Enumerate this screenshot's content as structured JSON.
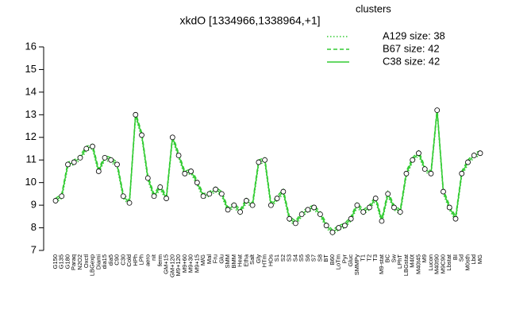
{
  "chart_data": {
    "type": "line",
    "title": "xkdO [1334966,1338964,+1]",
    "legend_title": "clusters",
    "legend": "top-right",
    "categories": [
      "G150",
      "G135",
      "G180",
      "Paraq",
      "N2O2",
      "Oxctl",
      "LBGexp",
      "Diami",
      "dia15",
      "dia5",
      "C90",
      "C30",
      "Cold",
      "HPh",
      "LPh",
      "aero",
      "nit",
      "ferm",
      "GM+15",
      "GM+120",
      "M9+120",
      "M9+60",
      "M9+30",
      "M9+15",
      "M/G",
      "Mal",
      "Fru",
      "Glu",
      "SMM",
      "BMM",
      "Heat",
      "Etha",
      "Salt",
      "Gly",
      "HTm",
      "HOs",
      "S1",
      "S2",
      "S3",
      "S4",
      "S5",
      "S6",
      "S7",
      "S8",
      "BT",
      "B60",
      "LoTm",
      "Pyr",
      "Gluc",
      "SMMPy",
      "T1",
      "T2",
      "T3",
      "M9-stat",
      "BC",
      "Sw",
      "LPhT",
      "LBGstat",
      "M40t",
      "M40t45",
      "M9",
      "Lucon",
      "M40t90",
      "M9C90",
      "Lbstat",
      "BI",
      "Sd",
      "M0sth",
      "Lbd",
      "MG"
    ],
    "series": [
      {
        "name": "A129 size: 38",
        "color": "#33cc33",
        "dash": "dotted",
        "values": [
          9.1,
          9.3,
          10.7,
          10.8,
          11.0,
          11.4,
          11.5,
          10.4,
          11.0,
          10.9,
          10.7,
          9.3,
          9.0,
          12.9,
          12.0,
          10.1,
          9.3,
          9.7,
          9.2,
          11.9,
          11.1,
          10.3,
          10.4,
          9.9,
          9.3,
          9.4,
          9.6,
          9.4,
          8.7,
          8.9,
          8.6,
          9.1,
          8.9,
          10.8,
          10.9,
          8.9,
          9.2,
          9.5,
          8.3,
          8.1,
          8.5,
          8.7,
          8.8,
          8.5,
          8.0,
          7.7,
          7.9,
          8.0,
          8.3,
          8.9,
          8.6,
          8.8,
          9.2,
          8.2,
          9.4,
          8.8,
          8.6,
          10.3,
          10.9,
          11.2,
          10.5,
          10.3,
          13.1,
          9.5,
          8.8,
          8.3,
          10.3,
          10.8,
          11.1,
          11.2
        ]
      },
      {
        "name": "B67 size: 42",
        "color": "#33cc33",
        "dash": "dashed",
        "values": [
          9.3,
          9.5,
          10.9,
          11.0,
          11.2,
          11.6,
          11.7,
          10.6,
          11.2,
          11.1,
          10.9,
          9.5,
          9.2,
          13.1,
          12.2,
          10.3,
          9.5,
          9.9,
          9.4,
          12.1,
          11.3,
          10.5,
          10.6,
          10.1,
          9.5,
          9.6,
          9.8,
          9.6,
          8.9,
          9.1,
          8.8,
          9.3,
          9.1,
          11.0,
          11.1,
          9.1,
          9.4,
          9.7,
          8.5,
          8.3,
          8.7,
          8.9,
          9.0,
          8.7,
          8.2,
          7.9,
          8.1,
          8.2,
          8.5,
          9.1,
          8.8,
          9.0,
          9.4,
          8.4,
          9.6,
          9.0,
          8.8,
          10.5,
          11.1,
          11.4,
          10.7,
          10.5,
          13.3,
          9.7,
          9.0,
          8.5,
          10.5,
          11.0,
          11.3,
          11.4
        ]
      },
      {
        "name": "C38 size: 42",
        "color": "#33cc33",
        "dash": "solid",
        "points": true,
        "values": [
          9.2,
          9.4,
          10.8,
          10.9,
          11.1,
          11.5,
          11.6,
          10.5,
          11.1,
          11.0,
          10.8,
          9.4,
          9.1,
          13.0,
          12.1,
          10.2,
          9.4,
          9.8,
          9.3,
          12.0,
          11.2,
          10.4,
          10.5,
          10.0,
          9.4,
          9.5,
          9.7,
          9.5,
          8.8,
          9.0,
          8.7,
          9.2,
          9.0,
          10.9,
          11.0,
          9.0,
          9.3,
          9.6,
          8.4,
          8.2,
          8.6,
          8.8,
          8.9,
          8.6,
          8.1,
          7.8,
          8.0,
          8.1,
          8.4,
          9.0,
          8.7,
          8.9,
          9.3,
          8.3,
          9.5,
          8.9,
          8.7,
          10.4,
          11.0,
          11.3,
          10.6,
          10.4,
          13.2,
          9.6,
          8.9,
          8.4,
          10.4,
          10.9,
          11.2,
          11.3
        ]
      }
    ],
    "ylim": [
      7,
      16
    ],
    "yticks": [
      7,
      8,
      9,
      10,
      11,
      12,
      13,
      14,
      15,
      16
    ]
  }
}
